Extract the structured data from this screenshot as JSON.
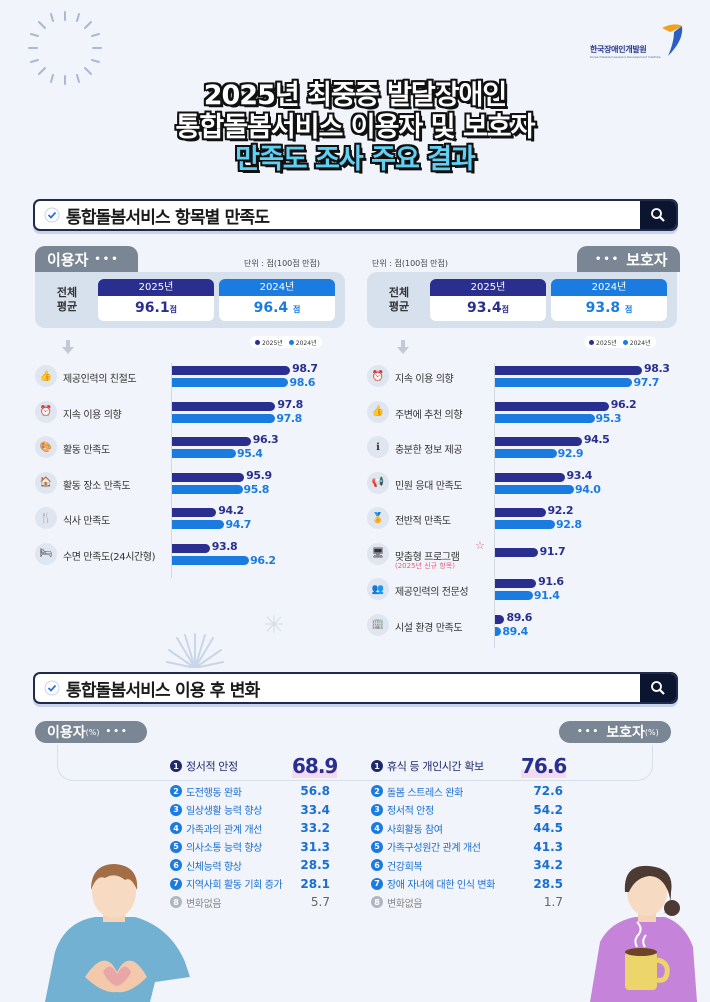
{
  "logo": {
    "name": "한국장애인개발원",
    "sub": "Korea Disabled people's Development Institute"
  },
  "title": {
    "line1": "2025년 최중증 발달장애인",
    "line2": "통합돌봄서비스 이용자 및 보호자",
    "line3": "만족도 조사 주요 결과"
  },
  "section1": {
    "title": "통합돌봄서비스 항목별 만족도"
  },
  "section2": {
    "title": "통합돌봄서비스 이용 후 변화"
  },
  "colors": {
    "y2025": "#2a2f8f",
    "y2024": "#1a7be0",
    "tab_gray": "#7b8694",
    "new_item": "#e0607a"
  },
  "users": {
    "tab": "이용자",
    "unit": "단위 : 점(100점 만점)",
    "avg_label_1": "전체",
    "avg_label_2": "평균",
    "y2025_label": "2025년",
    "y2024_label": "2024년",
    "y2025_avg": "96.1",
    "y2024_avg": "96.4",
    "pt": "점",
    "legend_2025": "2025년",
    "legend_2024": "2024년"
  },
  "guardians": {
    "tab": "보호자",
    "unit": "단위 : 점(100점 만점)",
    "avg_label_1": "전체",
    "avg_label_2": "평균",
    "y2025_label": "2025년",
    "y2024_label": "2024년",
    "y2025_avg": "93.4",
    "y2024_avg": "93.8",
    "pt": "점",
    "legend_2025": "2025년",
    "legend_2024": "2024년"
  },
  "chart_data": [
    {
      "type": "bar",
      "title": "이용자 항목별 만족도",
      "unit": "점(100점 만점)",
      "categories": [
        "제공인력의 친절도",
        "지속 이용 의향",
        "활동 만족도",
        "활동 장소 만족도",
        "식사 만족도",
        "수면 만족도(24시간형)"
      ],
      "series": [
        {
          "name": "2025년",
          "values": [
            98.7,
            97.8,
            96.3,
            95.9,
            94.2,
            93.8
          ]
        },
        {
          "name": "2024년",
          "values": [
            98.6,
            97.8,
            95.4,
            95.8,
            94.7,
            96.2
          ]
        }
      ],
      "overall_average": {
        "2025년": 96.1,
        "2024년": 96.4
      },
      "orientation": "horizontal",
      "legend_position": "top-right"
    },
    {
      "type": "bar",
      "title": "보호자 항목별 만족도",
      "unit": "점(100점 만점)",
      "categories": [
        "지속 이용 의향",
        "주변에 추천 의향",
        "충분한 정보 제공",
        "민원 응대 만족도",
        "전반적 만족도",
        "맞춤형 프로그램",
        "제공인력의 전문성",
        "시설 환경 만족도"
      ],
      "series": [
        {
          "name": "2025년",
          "values": [
            98.3,
            96.2,
            94.5,
            93.4,
            92.2,
            91.7,
            91.6,
            89.6
          ]
        },
        {
          "name": "2024년",
          "values": [
            97.7,
            95.3,
            92.9,
            94.0,
            92.8,
            null,
            91.4,
            89.4
          ]
        }
      ],
      "annotations": [
        "맞춤형 프로그램: (2025년 신규 항목)"
      ],
      "overall_average": {
        "2025년": 93.4,
        "2024년": 93.8
      },
      "orientation": "horizontal",
      "legend_position": "top-right"
    },
    {
      "type": "table",
      "title": "이용자(%) 이용 후 변화",
      "categories": [
        "정서적 안정",
        "도전행동 완화",
        "일상생활 능력 향상",
        "가족과의 관계 개선",
        "의사소통 능력 향상",
        "신체능력 향상",
        "지역사회 활동 기회 증가",
        "변화없음"
      ],
      "values": [
        68.9,
        56.8,
        33.4,
        33.2,
        31.3,
        28.5,
        28.1,
        5.7
      ]
    },
    {
      "type": "table",
      "title": "보호자(%) 이용 후 변화",
      "categories": [
        "휴식 등 개인시간 확보",
        "돌봄 스트레스 완화",
        "정서적 안정",
        "사회활동 참여",
        "가족구성원간 관계 개선",
        "건강회복",
        "장애 자녀에 대한 인식 변화",
        "변화없음"
      ],
      "values": [
        76.6,
        72.6,
        54.2,
        44.5,
        41.3,
        34.2,
        28.5,
        1.7
      ]
    }
  ],
  "user_bars": [
    {
      "label": "제공인력의 친절도",
      "icon": "thumbs-up-icon",
      "v25": "98.7",
      "v24": "98.6"
    },
    {
      "label": "지속 이용 의향",
      "icon": "alarm-clock-icon",
      "v25": "97.8",
      "v24": "97.8"
    },
    {
      "label": "활동 만족도",
      "icon": "activity-icon",
      "v25": "96.3",
      "v24": "95.4"
    },
    {
      "label": "활동 장소 만족도",
      "icon": "building-icon",
      "v25": "95.9",
      "v24": "95.8"
    },
    {
      "label": "식사 만족도",
      "icon": "utensils-icon",
      "v25": "94.2",
      "v24": "94.7"
    },
    {
      "label": "수면 만족도(24시간형)",
      "icon": "bed-icon",
      "v25": "93.8",
      "v24": "96.2"
    }
  ],
  "guardian_bars": [
    {
      "label": "지속 이용 의향",
      "icon": "alarm-clock-icon",
      "v25": "98.3",
      "v24": "97.7"
    },
    {
      "label": "주변에 추천 의향",
      "icon": "thumbs-up-icon",
      "v25": "96.2",
      "v24": "95.3"
    },
    {
      "label": "충분한 정보 제공",
      "icon": "info-icon",
      "v25": "94.5",
      "v24": "92.9"
    },
    {
      "label": "민원 응대 만족도",
      "icon": "megaphone-icon",
      "v25": "93.4",
      "v24": "94.0"
    },
    {
      "label": "전반적 만족도",
      "icon": "badge-icon",
      "v25": "92.2",
      "v24": "92.8"
    },
    {
      "label": "맞춤형 프로그램",
      "sub": "(2025년 신규 항목)",
      "icon": "monitor-icon",
      "v25": "91.7",
      "v24": ""
    },
    {
      "label": "제공인력의 전문성",
      "icon": "staff-icon",
      "v25": "91.6",
      "v24": "91.4"
    },
    {
      "label": "시설 환경 만족도",
      "icon": "facility-icon",
      "v25": "89.6",
      "v24": "89.4"
    }
  ],
  "changes": {
    "users_pill": "이용자",
    "guardians_pill": "보호자",
    "pct": "(%)",
    "users_top": {
      "num": "1",
      "label": "정서적 안정",
      "value": "68.9"
    },
    "guardians_top": {
      "num": "1",
      "label": "휴식 등 개인시간 확보",
      "value": "76.6"
    },
    "users_list": [
      {
        "num": "2",
        "label": "도전행동 완화",
        "value": "56.8"
      },
      {
        "num": "3",
        "label": "일상생활 능력 향상",
        "value": "33.4"
      },
      {
        "num": "4",
        "label": "가족과의 관계 개선",
        "value": "33.2"
      },
      {
        "num": "5",
        "label": "의사소통 능력 향상",
        "value": "31.3"
      },
      {
        "num": "6",
        "label": "신체능력 향상",
        "value": "28.5"
      },
      {
        "num": "7",
        "label": "지역사회 활동 기회 증가",
        "value": "28.1"
      },
      {
        "num": "8",
        "label": "변화없음",
        "value": "5.7"
      }
    ],
    "guardians_list": [
      {
        "num": "2",
        "label": "돌봄 스트레스 완화",
        "value": "72.6"
      },
      {
        "num": "3",
        "label": "정서적 안정",
        "value": "54.2"
      },
      {
        "num": "4",
        "label": "사회활동 참여",
        "value": "44.5"
      },
      {
        "num": "5",
        "label": "가족구성원간 관계 개선",
        "value": "41.3"
      },
      {
        "num": "6",
        "label": "건강회복",
        "value": "34.2"
      },
      {
        "num": "7",
        "label": "장애 자녀에 대한 인식 변화",
        "value": "28.5"
      },
      {
        "num": "8",
        "label": "변화없음",
        "value": "1.7"
      }
    ]
  }
}
